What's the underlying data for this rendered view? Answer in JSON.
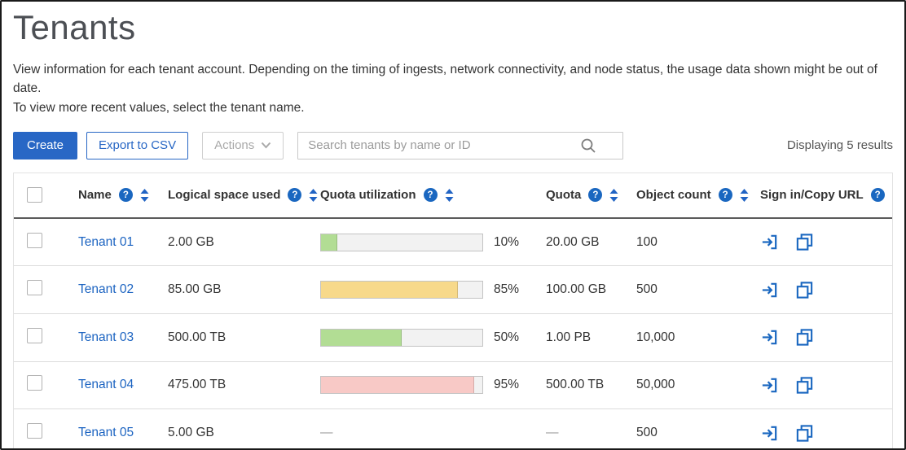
{
  "page": {
    "title": "Tenants",
    "description_line1": "View information for each tenant account. Depending on the timing of ingests, network connectivity, and node status, the usage data shown might be out of date.",
    "description_line2": "To view more recent values, select the tenant name."
  },
  "toolbar": {
    "create_label": "Create",
    "export_label": "Export to CSV",
    "actions_label": "Actions",
    "search_placeholder": "Search tenants by name or ID",
    "results_text": "Displaying 5 results"
  },
  "icons": {
    "help_glyph": "?"
  },
  "colors": {
    "accent_blue": "#2867c5",
    "link_blue": "#1b63c1",
    "icon_blue": "#1a67c0",
    "bar_green": "#b2dd94",
    "bar_yellow": "#f7d98b",
    "bar_red": "#f8c9c6"
  },
  "table": {
    "empty_placeholder": "—",
    "columns": [
      {
        "key": "name",
        "label": "Name",
        "help": true,
        "sortable": true
      },
      {
        "key": "logical-space-used",
        "label": "Logical space used",
        "help": true,
        "sortable": true
      },
      {
        "key": "quota-utilization",
        "label": "Quota utilization",
        "help": true,
        "sortable": true
      },
      {
        "key": "quota",
        "label": "Quota",
        "help": true,
        "sortable": true
      },
      {
        "key": "object-count",
        "label": "Object count",
        "help": true,
        "sortable": true
      },
      {
        "key": "sign-in-copy-url",
        "label": "Sign in/Copy URL",
        "help": true,
        "sortable": false
      }
    ],
    "rows": [
      {
        "name": "Tenant 01",
        "logical_space": "2.00 GB",
        "utilization_pct": 10,
        "utilization_label": "10%",
        "bar_color": "#b2dd94",
        "quota": "20.00 GB",
        "object_count": "100"
      },
      {
        "name": "Tenant 02",
        "logical_space": "85.00 GB",
        "utilization_pct": 85,
        "utilization_label": "85%",
        "bar_color": "#f7d98b",
        "quota": "100.00 GB",
        "object_count": "500"
      },
      {
        "name": "Tenant 03",
        "logical_space": "500.00 TB",
        "utilization_pct": 50,
        "utilization_label": "50%",
        "bar_color": "#b2dd94",
        "quota": "1.00 PB",
        "object_count": "10,000"
      },
      {
        "name": "Tenant 04",
        "logical_space": "475.00 TB",
        "utilization_pct": 95,
        "utilization_label": "95%",
        "bar_color": "#f8c9c6",
        "quota": "500.00 TB",
        "object_count": "50,000"
      },
      {
        "name": "Tenant 05",
        "logical_space": "5.00 GB",
        "utilization_pct": null,
        "utilization_label": null,
        "bar_color": null,
        "quota": null,
        "object_count": "500"
      }
    ]
  }
}
